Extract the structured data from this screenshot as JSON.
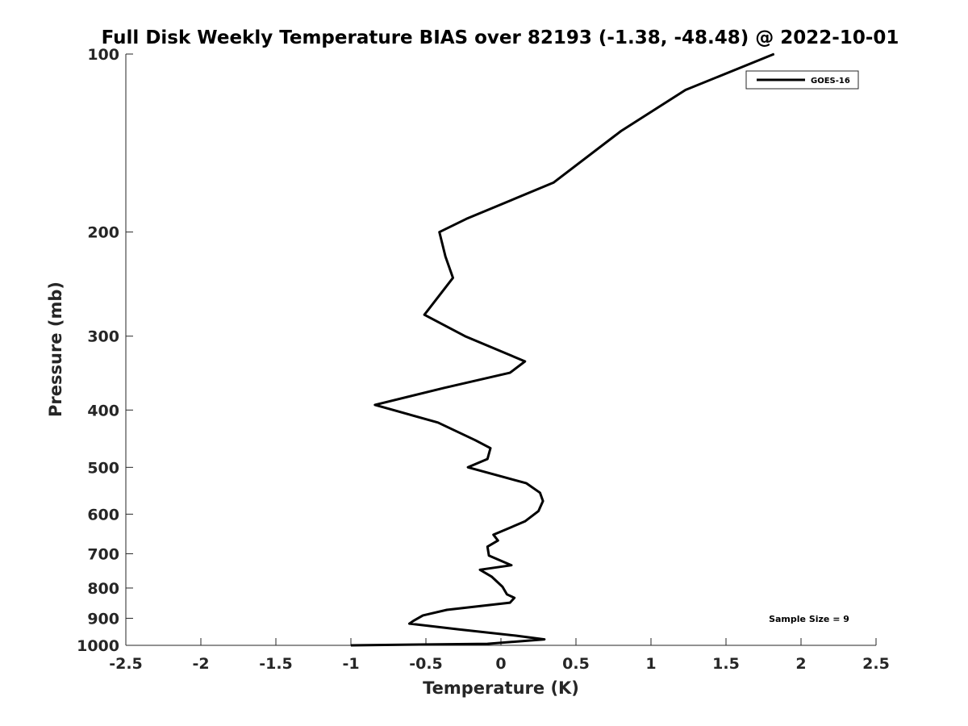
{
  "chart_data": {
    "type": "line",
    "title": "Full Disk Weekly Temperature BIAS over 82193 (-1.38, -48.48) @ 2022-10-01",
    "xlabel": "Temperature (K)",
    "ylabel": "Pressure (mb)",
    "xlim": [
      -2.5,
      2.5
    ],
    "ylim": [
      100,
      1000
    ],
    "y_scale": "log",
    "y_reversed": true,
    "x_ticks": [
      "-2.5",
      "-2",
      "-1.5",
      "-1",
      "-0.5",
      "0",
      "0.5",
      "1",
      "1.5",
      "2",
      "2.5"
    ],
    "x_tick_values": [
      -2.5,
      -2,
      -1.5,
      -1,
      -0.5,
      0,
      0.5,
      1,
      1.5,
      2,
      2.5
    ],
    "y_ticks": [
      "100",
      "200",
      "300",
      "400",
      "500",
      "600",
      "700",
      "800",
      "900",
      "1000"
    ],
    "y_tick_values": [
      100,
      200,
      300,
      400,
      500,
      600,
      700,
      800,
      900,
      1000
    ],
    "grid": false,
    "legend_position": "top-right",
    "annotation": "Sample Size = 9",
    "series": [
      {
        "name": "GOES-16",
        "color": "#000000",
        "points": [
          {
            "x": 1.82,
            "y": 100
          },
          {
            "x": 1.23,
            "y": 115
          },
          {
            "x": 0.8,
            "y": 135
          },
          {
            "x": 0.35,
            "y": 165
          },
          {
            "x": -0.23,
            "y": 190
          },
          {
            "x": -0.41,
            "y": 200
          },
          {
            "x": -0.37,
            "y": 220
          },
          {
            "x": -0.32,
            "y": 239
          },
          {
            "x": -0.41,
            "y": 256
          },
          {
            "x": -0.51,
            "y": 276
          },
          {
            "x": -0.24,
            "y": 300
          },
          {
            "x": 0.16,
            "y": 331
          },
          {
            "x": 0.06,
            "y": 346
          },
          {
            "x": -0.38,
            "y": 367
          },
          {
            "x": -0.84,
            "y": 392
          },
          {
            "x": -0.42,
            "y": 420
          },
          {
            "x": -0.17,
            "y": 450
          },
          {
            "x": -0.07,
            "y": 464
          },
          {
            "x": -0.09,
            "y": 484
          },
          {
            "x": -0.22,
            "y": 500
          },
          {
            "x": 0.17,
            "y": 532
          },
          {
            "x": 0.26,
            "y": 552
          },
          {
            "x": 0.28,
            "y": 570
          },
          {
            "x": 0.25,
            "y": 593
          },
          {
            "x": 0.16,
            "y": 617
          },
          {
            "x": -0.05,
            "y": 650
          },
          {
            "x": -0.02,
            "y": 665
          },
          {
            "x": -0.09,
            "y": 681
          },
          {
            "x": -0.08,
            "y": 705
          },
          {
            "x": 0.07,
            "y": 732
          },
          {
            "x": -0.14,
            "y": 745
          },
          {
            "x": -0.06,
            "y": 766
          },
          {
            "x": 0.01,
            "y": 796
          },
          {
            "x": 0.04,
            "y": 820
          },
          {
            "x": 0.09,
            "y": 831
          },
          {
            "x": 0.06,
            "y": 847
          },
          {
            "x": -0.36,
            "y": 871
          },
          {
            "x": -0.52,
            "y": 890
          },
          {
            "x": -0.58,
            "y": 908
          },
          {
            "x": -0.61,
            "y": 919
          },
          {
            "x": -0.28,
            "y": 940
          },
          {
            "x": 0.1,
            "y": 963
          },
          {
            "x": 0.29,
            "y": 977
          },
          {
            "x": -0.09,
            "y": 994
          },
          {
            "x": -1.0,
            "y": 1000
          }
        ]
      }
    ]
  }
}
